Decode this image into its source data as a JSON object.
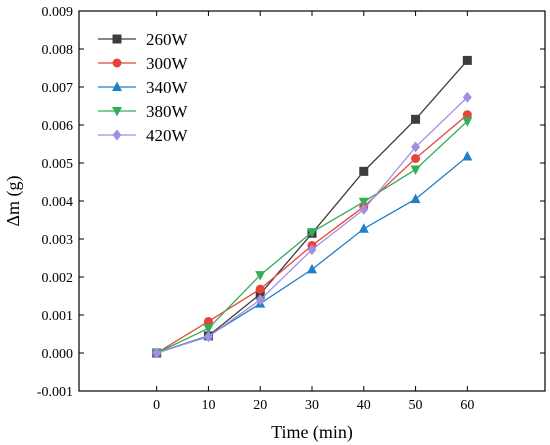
{
  "chart_data": {
    "type": "line",
    "title": "",
    "xlabel": "Time (min)",
    "ylabel": "Δm (g)",
    "x": [
      0,
      10,
      20,
      30,
      40,
      50,
      60
    ],
    "xlim": [
      -15,
      75
    ],
    "ylim": [
      -0.001,
      0.009
    ],
    "xticks": [
      "0",
      "10",
      "20",
      "30",
      "40",
      "50",
      "60"
    ],
    "yticks": [
      "-0.001",
      "0.000",
      "0.001",
      "0.002",
      "0.003",
      "0.004",
      "0.005",
      "0.006",
      "0.007",
      "0.008",
      "0.009"
    ],
    "legend_position": "top-left",
    "grid": false,
    "series": [
      {
        "name": "260W",
        "color": "#3d3d3d",
        "marker": "square",
        "values": [
          0.0,
          0.00045,
          0.00155,
          0.00315,
          0.00478,
          0.00615,
          0.0077
        ]
      },
      {
        "name": "300W",
        "color": "#e8423a",
        "marker": "circle",
        "values": [
          0.0,
          0.00083,
          0.00168,
          0.00283,
          0.00385,
          0.00512,
          0.00627
        ]
      },
      {
        "name": "340W",
        "color": "#1f7fc7",
        "marker": "triangle-up",
        "values": [
          0.0,
          0.00045,
          0.0013,
          0.0022,
          0.00327,
          0.00405,
          0.00517
        ]
      },
      {
        "name": "380W",
        "color": "#33ad58",
        "marker": "triangle-down",
        "values": [
          0.0,
          0.00065,
          0.00205,
          0.00318,
          0.00398,
          0.00483,
          0.0061
        ]
      },
      {
        "name": "420W",
        "color": "#a38fe0",
        "marker": "diamond",
        "values": [
          0.0,
          0.00043,
          0.0014,
          0.00272,
          0.00378,
          0.00542,
          0.00673
        ]
      }
    ]
  }
}
